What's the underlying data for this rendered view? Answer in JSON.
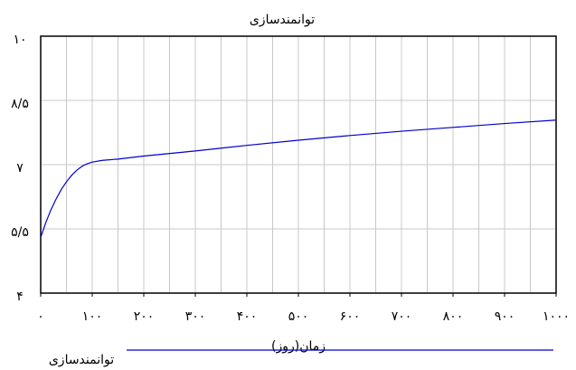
{
  "chart_data": {
    "type": "line",
    "title": "توانمندسازی",
    "xlabel": "زمان(روز)",
    "x": [
      0,
      10,
      20,
      30,
      40,
      50,
      60,
      70,
      80,
      90,
      100,
      120,
      150,
      200,
      300,
      400,
      500,
      600,
      700,
      800,
      900,
      1000
    ],
    "series": [
      {
        "name": "توانمندسازی",
        "color": "#0000cc",
        "values": [
          5.3,
          5.65,
          5.95,
          6.2,
          6.42,
          6.6,
          6.75,
          6.87,
          6.96,
          7.02,
          7.06,
          7.1,
          7.13,
          7.2,
          7.32,
          7.45,
          7.57,
          7.68,
          7.78,
          7.87,
          7.96,
          8.04
        ]
      }
    ],
    "xlim": [
      0,
      1000
    ],
    "xticks": [
      {
        "value": 0,
        "label": "۰"
      },
      {
        "value": 100,
        "label": "۱۰۰"
      },
      {
        "value": 200,
        "label": "۲۰۰"
      },
      {
        "value": 300,
        "label": "۳۰۰"
      },
      {
        "value": 400,
        "label": "۴۰۰"
      },
      {
        "value": 500,
        "label": "۵۰۰"
      },
      {
        "value": 600,
        "label": "۶۰۰"
      },
      {
        "value": 700,
        "label": "۷۰۰"
      },
      {
        "value": 800,
        "label": "۸۰۰"
      },
      {
        "value": 900,
        "label": "۹۰۰"
      },
      {
        "value": 1000,
        "label": "۱۰۰۰"
      }
    ],
    "xgrid": [
      50,
      100,
      150,
      200,
      250,
      300,
      350,
      400,
      450,
      500,
      550,
      600,
      650,
      700,
      750,
      800,
      850,
      900,
      950
    ],
    "ylim": [
      4,
      10
    ],
    "yticks": [
      {
        "value": 4,
        "label": "۴"
      },
      {
        "value": 5.5,
        "label": "۵/۵"
      },
      {
        "value": 7,
        "label": "۷"
      },
      {
        "value": 8.5,
        "label": "۸/۵"
      },
      {
        "value": 10,
        "label": "۱۰"
      }
    ],
    "grid": true
  }
}
